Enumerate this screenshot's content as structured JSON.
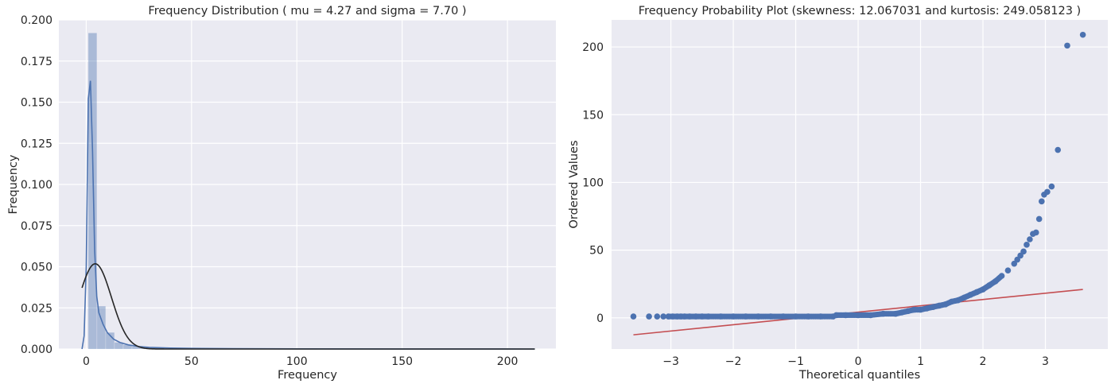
{
  "chart_data": [
    {
      "type": "bar",
      "title": "Frequency Distribution ( mu = 4.27 and sigma = 7.70 )",
      "xlabel": "Frequency",
      "ylabel": "Frequency",
      "xlim": [
        -13,
        223
      ],
      "ylim": [
        0,
        0.2
      ],
      "xticks": [
        0,
        50,
        100,
        150,
        200
      ],
      "yticks": [
        0,
        0.025,
        0.05,
        0.075,
        0.1,
        0.125,
        0.15,
        0.175,
        0.2
      ],
      "ytick_labels": [
        "0.000",
        "0.025",
        "0.050",
        "0.075",
        "0.100",
        "0.125",
        "0.150",
        "0.175",
        "0.200"
      ],
      "grid": true,
      "histogram": {
        "bin_start": 1,
        "bin_width": 4.16,
        "values": [
          0.192,
          0.026,
          0.01,
          0.004,
          0.0025,
          0.0015,
          0.001,
          0.0008,
          0.0005,
          0.0004,
          0.0003,
          0.0002,
          0.00015,
          0.0001,
          0.0001,
          0.0001,
          8e-05,
          6e-05,
          5e-05,
          4e-05,
          3e-05,
          2e-05,
          2e-05,
          2e-05,
          1e-05,
          1e-05,
          1e-05,
          1e-05,
          1e-05,
          1e-05,
          1e-05,
          1e-05,
          1e-05,
          1e-05,
          1e-05,
          1e-05,
          1e-05,
          1e-05,
          1e-05,
          1e-05,
          1e-05,
          1e-05,
          1e-05,
          1e-05,
          1e-05,
          1e-05,
          1e-05,
          1e-05,
          1e-05,
          1e-05
        ],
        "color": "#4c72b0",
        "alpha": 0.4
      },
      "kde": {
        "x": [
          -2,
          -1,
          0,
          1,
          2,
          3,
          4,
          5,
          6,
          8,
          10,
          13,
          16,
          20,
          25,
          30,
          40,
          50,
          70,
          100,
          150,
          213
        ],
        "y": [
          0,
          0.008,
          0.05,
          0.152,
          0.163,
          0.12,
          0.06,
          0.032,
          0.022,
          0.015,
          0.01,
          0.006,
          0.004,
          0.0025,
          0.0015,
          0.001,
          0.0006,
          0.0004,
          0.0002,
          0.0001,
          5e-05,
          0
        ],
        "color": "#4c72b0"
      },
      "normal_fit": {
        "mu": 4.27,
        "sigma": 7.7,
        "x_range": [
          -2,
          213
        ],
        "color": "#262626"
      }
    },
    {
      "type": "scatter",
      "title": "Frequency Probability Plot (skewness: 12.067031 and kurtosis: 249.058123 )",
      "xlabel": "Theoretical quantiles",
      "ylabel": "Ordered Values",
      "xlim": [
        -3.95,
        4.0
      ],
      "ylim": [
        -23,
        220
      ],
      "xticks": [
        -3,
        -2,
        -1,
        0,
        1,
        2,
        3
      ],
      "yticks": [
        0,
        50,
        100,
        150,
        200
      ],
      "grid": true,
      "points": {
        "x": [
          -3.6,
          -3.35,
          -3.22,
          -3.12,
          -3.04,
          -2.97,
          -2.9,
          -2.84,
          -2.78,
          -2.7,
          -2.6,
          -2.5,
          -2.4,
          -2.2,
          -2.0,
          -1.8,
          -1.6,
          -1.4,
          -1.2,
          -1.0,
          -0.8,
          -0.6,
          -0.4,
          -0.35,
          -0.2,
          0.0,
          0.2,
          0.4,
          0.6,
          0.7,
          0.8,
          0.9,
          1.0,
          1.1,
          1.2,
          1.3,
          1.4,
          1.5,
          1.6,
          1.7,
          1.8,
          1.9,
          2.0,
          2.1,
          2.2,
          2.3,
          2.4,
          2.5,
          2.55,
          2.6,
          2.65,
          2.7,
          2.75,
          2.8,
          2.85,
          2.9,
          2.94,
          2.98,
          3.03,
          3.1,
          3.2,
          3.35,
          3.6
        ],
        "y": [
          1,
          1,
          1,
          1,
          1,
          1,
          1,
          1,
          1,
          1,
          1,
          1,
          1,
          1,
          1,
          1,
          1,
          1,
          1,
          1,
          1,
          1,
          1,
          2,
          2,
          2,
          2,
          3,
          3,
          4,
          5,
          6,
          6,
          7,
          8,
          9,
          10,
          12,
          13,
          15,
          17,
          19,
          21,
          24,
          27,
          31,
          35,
          40,
          43,
          46,
          49,
          54,
          58,
          62,
          63,
          73,
          86,
          91,
          93,
          97,
          124,
          201,
          209
        ],
        "color": "#4c72b0"
      },
      "fit_line": {
        "x": [
          -3.6,
          3.6
        ],
        "y": [
          -12.5,
          21.0
        ],
        "color": "#c44e52"
      }
    }
  ]
}
